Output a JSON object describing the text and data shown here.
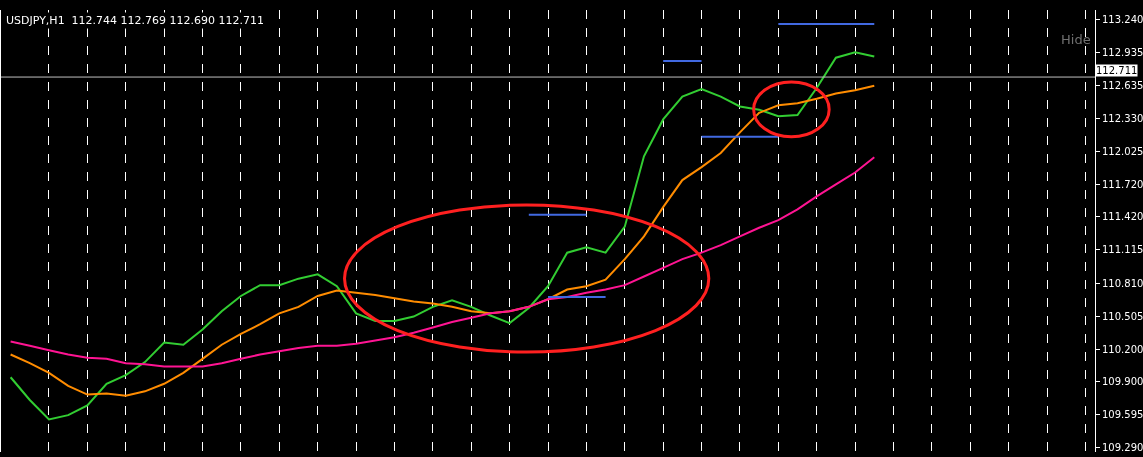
{
  "chart_data": {
    "type": "line",
    "title": "USDJPY,H1  112.744 112.769 112.690 112.711",
    "categories": [
      null,
      null,
      null,
      null,
      null,
      null,
      null,
      null,
      null,
      null,
      null,
      null,
      null,
      null,
      null,
      null,
      null,
      null,
      null,
      null,
      null,
      null,
      null,
      null,
      null,
      null,
      null,
      null,
      null,
      null,
      null,
      null,
      null,
      null,
      null,
      null,
      null,
      null,
      null,
      null,
      null,
      null,
      null,
      null,
      null,
      null,
      null,
      null,
      null,
      null,
      null,
      null,
      null,
      null,
      null,
      null,
      null
    ],
    "series": [
      {
        "color": "#32cd32",
        "values": [
          109.94,
          109.73,
          109.55,
          109.59,
          109.68,
          109.88,
          109.96,
          110.08,
          110.26,
          110.24,
          110.38,
          110.55,
          110.69,
          110.79,
          110.79,
          110.85,
          110.89,
          110.78,
          110.53,
          110.46,
          110.46,
          110.5,
          110.59,
          110.65,
          110.59,
          110.51,
          110.44,
          110.58,
          110.78,
          111.09,
          111.14,
          111.09,
          111.33,
          111.98,
          112.32,
          112.53,
          112.6,
          112.53,
          112.44,
          112.41,
          112.35,
          112.36,
          112.61,
          112.89,
          112.94,
          112.9,
          null,
          null,
          null,
          null,
          null,
          null,
          null,
          null,
          null,
          null,
          null
        ]
      },
      {
        "color": "#ff8c00",
        "values": [
          110.15,
          110.07,
          109.98,
          109.86,
          109.78,
          109.79,
          109.77,
          109.81,
          109.88,
          109.98,
          110.11,
          110.24,
          110.34,
          110.43,
          110.53,
          110.59,
          110.69,
          110.74,
          110.72,
          110.7,
          110.67,
          110.64,
          110.62,
          110.59,
          110.55,
          110.53,
          110.55,
          110.59,
          110.66,
          110.75,
          110.78,
          110.84,
          111.03,
          111.24,
          111.51,
          111.76,
          111.88,
          112.01,
          112.2,
          112.38,
          112.45,
          112.47,
          112.51,
          112.56,
          112.59,
          112.63,
          null,
          null,
          null,
          null,
          null,
          null,
          null,
          null,
          null,
          null,
          null
        ]
      },
      {
        "color": "#ff1493",
        "values": [
          110.27,
          110.23,
          110.19,
          110.15,
          110.12,
          110.11,
          110.07,
          110.06,
          110.04,
          110.04,
          110.04,
          110.07,
          110.11,
          110.15,
          110.18,
          110.21,
          110.23,
          110.23,
          110.25,
          110.28,
          110.31,
          110.35,
          110.4,
          110.45,
          110.49,
          110.53,
          110.55,
          110.59,
          110.66,
          110.68,
          110.72,
          110.75,
          110.79,
          110.87,
          110.95,
          111.03,
          111.09,
          111.16,
          111.24,
          111.32,
          111.39,
          111.49,
          111.61,
          111.72,
          111.83,
          111.97,
          null,
          null,
          null,
          null,
          null,
          null,
          null,
          null,
          null,
          null,
          null
        ]
      },
      {
        "color": "#4169e1",
        "values": [
          null,
          null,
          null,
          null,
          null,
          null,
          null,
          null,
          null,
          null,
          null,
          null,
          null,
          null,
          null,
          null,
          null,
          null,
          null,
          null,
          null,
          null,
          null,
          null,
          null,
          null,
          null,
          null,
          null,
          null,
          null,
          null,
          null,
          null,
          null,
          null,
          null,
          null,
          null,
          null,
          113.2,
          113.2,
          113.2,
          113.2,
          113.2,
          113.2,
          null,
          null,
          null,
          null,
          null,
          null,
          null,
          null,
          null,
          null,
          null
        ]
      },
      {
        "color": "#4169e1",
        "values": [
          null,
          null,
          null,
          null,
          null,
          null,
          null,
          null,
          null,
          null,
          null,
          null,
          null,
          null,
          null,
          null,
          null,
          null,
          null,
          null,
          null,
          null,
          null,
          null,
          null,
          null,
          null,
          null,
          null,
          null,
          null,
          null,
          null,
          null,
          112.86,
          112.86,
          112.86,
          null,
          null,
          null,
          null,
          null,
          null,
          null,
          null,
          null,
          null,
          null,
          null,
          null,
          null,
          null,
          null,
          null,
          null,
          null,
          null
        ]
      },
      {
        "color": "#4169e1",
        "values": [
          null,
          null,
          null,
          null,
          null,
          null,
          null,
          null,
          null,
          null,
          null,
          null,
          null,
          null,
          null,
          null,
          null,
          null,
          null,
          null,
          null,
          null,
          null,
          null,
          null,
          null,
          null,
          null,
          null,
          null,
          null,
          null,
          null,
          null,
          null,
          null,
          112.16,
          112.16,
          112.16,
          112.16,
          112.16,
          null,
          null,
          null,
          null,
          null,
          null,
          null,
          null,
          null,
          null,
          null,
          null,
          null,
          null,
          null,
          null
        ]
      },
      {
        "color": "#4169e1",
        "values": [
          null,
          null,
          null,
          null,
          null,
          null,
          null,
          null,
          null,
          null,
          null,
          null,
          null,
          null,
          null,
          null,
          null,
          null,
          null,
          null,
          null,
          null,
          null,
          null,
          null,
          null,
          null,
          111.44,
          111.44,
          111.44,
          111.44,
          null,
          null,
          null,
          null,
          null,
          null,
          null,
          null,
          null,
          null,
          null,
          null,
          null,
          null,
          null,
          null,
          null,
          null,
          null,
          null,
          null,
          null,
          null,
          null,
          null,
          null
        ]
      },
      {
        "color": "#4169e1",
        "values": [
          null,
          null,
          null,
          null,
          null,
          null,
          null,
          null,
          null,
          null,
          null,
          null,
          null,
          null,
          null,
          null,
          null,
          null,
          null,
          null,
          null,
          null,
          null,
          null,
          null,
          null,
          null,
          null,
          110.68,
          110.68,
          110.68,
          110.68,
          null,
          null,
          null,
          null,
          null,
          null,
          null,
          null,
          null,
          null,
          null,
          null,
          null,
          null,
          null,
          null,
          null,
          null,
          null,
          null,
          null,
          null,
          null,
          null,
          null
        ]
      }
    ],
    "ylim": [
      109.25,
      113.33
    ],
    "yticks": [
      {
        "value": 109.29,
        "label": "109.290"
      },
      {
        "value": 109.595,
        "label": "109.595"
      },
      {
        "value": 109.9,
        "label": "109.900"
      },
      {
        "value": 110.2,
        "label": "110.200"
      },
      {
        "value": 110.505,
        "label": "110.505"
      },
      {
        "value": 110.81,
        "label": "110.810"
      },
      {
        "value": 111.115,
        "label": "111.115"
      },
      {
        "value": 111.42,
        "label": "111.420"
      },
      {
        "value": 111.72,
        "label": "111.720"
      },
      {
        "value": 112.025,
        "label": "112.025"
      },
      {
        "value": 112.33,
        "label": "112.330"
      },
      {
        "value": 112.635,
        "label": "112.635"
      },
      {
        "value": 112.935,
        "label": "112.935"
      },
      {
        "value": 113.24,
        "label": "113.240"
      }
    ],
    "ref_lines": [
      {
        "axis": "y",
        "value": 112.711,
        "label": "112.711",
        "color": "#c0c0c0"
      }
    ],
    "annotations": [
      "Hide"
    ],
    "grid": "x",
    "tick_labels": "y",
    "marker": "none",
    "line_style": "solid"
  }
}
